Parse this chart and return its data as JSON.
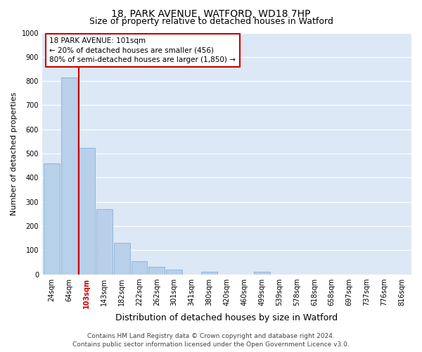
{
  "title": "18, PARK AVENUE, WATFORD, WD18 7HP",
  "subtitle": "Size of property relative to detached houses in Watford",
  "xlabel": "Distribution of detached houses by size in Watford",
  "ylabel": "Number of detached properties",
  "categories": [
    "24sqm",
    "64sqm",
    "103sqm",
    "143sqm",
    "182sqm",
    "222sqm",
    "262sqm",
    "301sqm",
    "341sqm",
    "380sqm",
    "420sqm",
    "460sqm",
    "499sqm",
    "539sqm",
    "578sqm",
    "618sqm",
    "658sqm",
    "697sqm",
    "737sqm",
    "776sqm",
    "816sqm"
  ],
  "values": [
    460,
    815,
    525,
    270,
    130,
    55,
    30,
    20,
    0,
    10,
    0,
    0,
    10,
    0,
    0,
    0,
    0,
    0,
    0,
    0,
    0
  ],
  "bar_color": "#b8d0ea",
  "bar_edge_color": "#8ab0d0",
  "vline_x_index": 2,
  "vline_color": "#cc0000",
  "highlight_bar_index": 2,
  "annotation_text": "18 PARK AVENUE: 101sqm\n← 20% of detached houses are smaller (456)\n80% of semi-detached houses are larger (1,850) →",
  "annotation_box_color": "#ffffff",
  "annotation_box_edge": "#cc0000",
  "ylim": [
    0,
    1000
  ],
  "yticks": [
    0,
    100,
    200,
    300,
    400,
    500,
    600,
    700,
    800,
    900,
    1000
  ],
  "footnote": "Contains HM Land Registry data © Crown copyright and database right 2024.\nContains public sector information licensed under the Open Government Licence v3.0.",
  "title_fontsize": 10,
  "subtitle_fontsize": 9,
  "xlabel_fontsize": 9,
  "ylabel_fontsize": 8,
  "tick_fontsize": 7,
  "footnote_fontsize": 6.5,
  "bg_color": "#dce8f5"
}
